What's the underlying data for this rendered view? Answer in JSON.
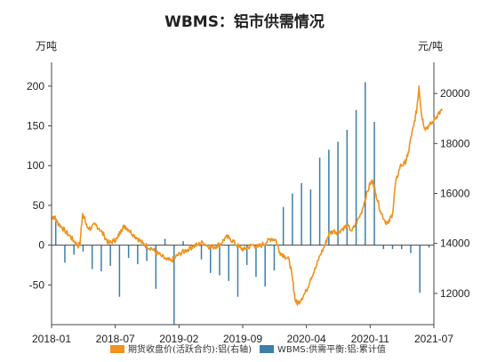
{
  "chart_data": {
    "type": "bar+line",
    "title": "WBMS：铝市供需情况",
    "left_unit": "万吨",
    "right_unit": "元/吨",
    "x_ticks": [
      "2018-01",
      "2018-07",
      "2019-02",
      "2019-09",
      "2020-04",
      "2020-11",
      "2021-07"
    ],
    "x_range": [
      "2018-01",
      "2021-07"
    ],
    "left_ylim": [
      -100,
      230
    ],
    "left_ticks": [
      -50,
      0,
      50,
      100,
      150,
      200
    ],
    "right_ylim": [
      10750,
      21250
    ],
    "right_ticks": [
      12000,
      14000,
      16000,
      18000,
      20000
    ],
    "grid": false,
    "legend_position": "bottom",
    "colors": {
      "line": "#f0921e",
      "bar": "#3c7fa8",
      "axis": "#444444"
    },
    "series": [
      {
        "name": "期货收盘价(活跃合约):铝(右轴)",
        "kind": "line",
        "axis": "right",
        "points": [
          [
            "2018-01-02",
            15050
          ],
          [
            "2018-01-10",
            15080
          ],
          [
            "2018-01-20",
            14850
          ],
          [
            "2018-02-01",
            14700
          ],
          [
            "2018-02-15",
            14500
          ],
          [
            "2018-03-01",
            14300
          ],
          [
            "2018-03-15",
            14100
          ],
          [
            "2018-03-28",
            13900
          ],
          [
            "2018-04-05",
            14000
          ],
          [
            "2018-04-13",
            15200
          ],
          [
            "2018-04-20",
            15000
          ],
          [
            "2018-04-28",
            14650
          ],
          [
            "2018-05-10",
            14600
          ],
          [
            "2018-05-25",
            14750
          ],
          [
            "2018-06-08",
            14600
          ],
          [
            "2018-06-25",
            14300
          ],
          [
            "2018-07-10",
            14000
          ],
          [
            "2018-07-25",
            14100
          ],
          [
            "2018-08-08",
            14200
          ],
          [
            "2018-08-20",
            14550
          ],
          [
            "2018-09-03",
            14700
          ],
          [
            "2018-09-15",
            14550
          ],
          [
            "2018-10-01",
            14350
          ],
          [
            "2018-10-15",
            14200
          ],
          [
            "2018-11-01",
            14000
          ],
          [
            "2018-11-15",
            13900
          ],
          [
            "2018-12-01",
            13800
          ],
          [
            "2018-12-15",
            13650
          ],
          [
            "2019-01-02",
            13500
          ],
          [
            "2019-01-20",
            13350
          ],
          [
            "2019-02-05",
            13300
          ],
          [
            "2019-02-20",
            13450
          ],
          [
            "2019-03-05",
            13600
          ],
          [
            "2019-03-20",
            13700
          ],
          [
            "2019-04-05",
            13800
          ],
          [
            "2019-04-20",
            13900
          ],
          [
            "2019-05-05",
            13950
          ],
          [
            "2019-05-20",
            14050
          ],
          [
            "2019-06-05",
            13900
          ],
          [
            "2019-06-20",
            13850
          ],
          [
            "2019-07-05",
            13900
          ],
          [
            "2019-07-20",
            14000
          ],
          [
            "2019-08-05",
            14250
          ],
          [
            "2019-08-20",
            14200
          ],
          [
            "2019-09-05",
            14000
          ],
          [
            "2019-09-20",
            13850
          ],
          [
            "2019-10-05",
            13750
          ],
          [
            "2019-10-20",
            13850
          ],
          [
            "2019-11-05",
            13950
          ],
          [
            "2019-11-20",
            13850
          ],
          [
            "2019-12-05",
            13950
          ],
          [
            "2019-12-20",
            14050
          ],
          [
            "2020-01-05",
            14200
          ],
          [
            "2020-01-20",
            14150
          ],
          [
            "2020-02-03",
            13650
          ],
          [
            "2020-02-20",
            13500
          ],
          [
            "2020-03-05",
            13300
          ],
          [
            "2020-03-15",
            12600
          ],
          [
            "2020-03-25",
            11700
          ],
          [
            "2020-04-02",
            11600
          ],
          [
            "2020-04-15",
            11800
          ],
          [
            "2020-05-01",
            12100
          ],
          [
            "2020-05-15",
            12600
          ],
          [
            "2020-06-01",
            13000
          ],
          [
            "2020-06-15",
            13500
          ],
          [
            "2020-07-01",
            13900
          ],
          [
            "2020-07-15",
            14400
          ],
          [
            "2020-08-01",
            14500
          ],
          [
            "2020-08-15",
            14450
          ],
          [
            "2020-09-01",
            14600
          ],
          [
            "2020-09-15",
            14700
          ],
          [
            "2020-10-01",
            14500
          ],
          [
            "2020-10-15",
            14800
          ],
          [
            "2020-11-01",
            15200
          ],
          [
            "2020-11-15",
            15800
          ],
          [
            "2020-12-01",
            16400
          ],
          [
            "2020-12-10",
            16500
          ],
          [
            "2020-12-20",
            16000
          ],
          [
            "2021-01-05",
            15300
          ],
          [
            "2021-01-20",
            14900
          ],
          [
            "2021-02-01",
            14800
          ],
          [
            "2021-02-15",
            15200
          ],
          [
            "2021-02-25",
            16400
          ],
          [
            "2021-03-10",
            17100
          ],
          [
            "2021-03-25",
            17200
          ],
          [
            "2021-04-05",
            17500
          ],
          [
            "2021-04-15",
            18200
          ],
          [
            "2021-04-25",
            18700
          ],
          [
            "2021-05-05",
            19400
          ],
          [
            "2021-05-12",
            20300
          ],
          [
            "2021-05-20",
            19200
          ],
          [
            "2021-06-01",
            18600
          ],
          [
            "2021-06-15",
            18700
          ],
          [
            "2021-07-01",
            18900
          ],
          [
            "2021-07-15",
            19200
          ],
          [
            "2021-07-28",
            19300
          ]
        ]
      },
      {
        "name": "WBMS:供需平衡:铝:累计值",
        "kind": "bar",
        "axis": "left",
        "points": [
          [
            "2018-01",
            30
          ],
          [
            "2018-02",
            -22
          ],
          [
            "2018-03",
            -12
          ],
          [
            "2018-04",
            -8
          ],
          [
            "2018-05",
            -30
          ],
          [
            "2018-06",
            -33
          ],
          [
            "2018-07",
            -26
          ],
          [
            "2018-08",
            -65
          ],
          [
            "2018-09",
            -16
          ],
          [
            "2018-10",
            -24
          ],
          [
            "2018-11",
            -20
          ],
          [
            "2018-12",
            -55
          ],
          [
            "2019-01",
            8
          ],
          [
            "2019-02",
            -100
          ],
          [
            "2019-03",
            5
          ],
          [
            "2019-04",
            -3
          ],
          [
            "2019-05",
            -18
          ],
          [
            "2019-06",
            -35
          ],
          [
            "2019-07",
            -38
          ],
          [
            "2019-08",
            -45
          ],
          [
            "2019-09",
            -65
          ],
          [
            "2019-10",
            -25
          ],
          [
            "2019-11",
            -40
          ],
          [
            "2019-12",
            -52
          ],
          [
            "2020-01",
            -32
          ],
          [
            "2020-02",
            48
          ],
          [
            "2020-03",
            65
          ],
          [
            "2020-04",
            78
          ],
          [
            "2020-05",
            70
          ],
          [
            "2020-06",
            110
          ],
          [
            "2020-07",
            120
          ],
          [
            "2020-08",
            130
          ],
          [
            "2020-09",
            145
          ],
          [
            "2020-10",
            170
          ],
          [
            "2020-11",
            205
          ],
          [
            "2020-12",
            155
          ],
          [
            "2021-01",
            -5
          ],
          [
            "2021-02",
            -5
          ],
          [
            "2021-03",
            -5
          ],
          [
            "2021-04",
            -10
          ],
          [
            "2021-05",
            -60
          ],
          [
            "2021-06",
            -3
          ]
        ]
      }
    ]
  }
}
